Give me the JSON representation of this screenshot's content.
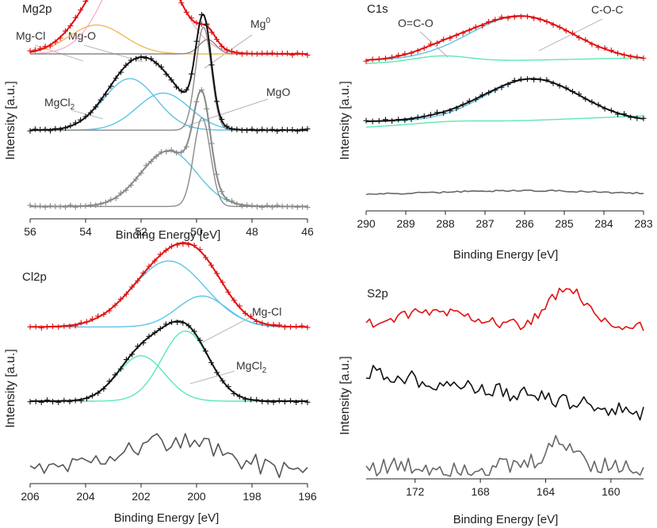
{
  "figure_title": "",
  "chart_data": [
    {
      "id": "mg2p",
      "type": "line",
      "title": "Mg2p",
      "xlabel": "Binding Energy [eV]",
      "ylabel": "Intensity [a.u.]",
      "xlim": [
        56,
        46
      ],
      "ylim": [
        0,
        1
      ],
      "x_ticks": [
        56,
        54,
        52,
        50,
        48,
        46
      ],
      "x_tick_labels": [
        "56",
        "54",
        "52",
        "50",
        "48",
        "46"
      ],
      "annotations": [
        {
          "id": "mg-cl",
          "text": "Mg-Cl",
          "sub": "",
          "sup": ""
        },
        {
          "id": "mg-o",
          "text": "Mg-O",
          "sub": "",
          "sup": ""
        },
        {
          "id": "mg0",
          "text": "Mg",
          "sub": "",
          "sup": "0"
        },
        {
          "id": "mgcl2",
          "text": "MgCl",
          "sub": "2",
          "sup": ""
        },
        {
          "id": "mgo",
          "text": "MgO",
          "sub": "",
          "sup": ""
        }
      ],
      "traces": [
        {
          "name": "top-mgcl-component",
          "color": "#f5b2cf",
          "kind": "line",
          "offset": 0.8,
          "x_range": [
            56,
            46
          ],
          "n": 200,
          "peaks": [
            {
              "c": 52.0,
              "a": 0.55,
              "w": 1.15
            }
          ]
        },
        {
          "name": "top-mgo-component",
          "color": "#f0b959",
          "kind": "line",
          "offset": 0.8,
          "x_range": [
            56,
            46
          ],
          "n": 200,
          "peaks": [
            {
              "c": 53.6,
              "a": 0.14,
              "w": 1.0
            }
          ]
        },
        {
          "name": "top-mg0-component",
          "color": "#8a8a8a",
          "kind": "line",
          "offset": 0.8,
          "x_range": [
            56,
            46
          ],
          "n": 200,
          "peaks": [
            {
              "c": 49.6,
              "a": 0.07,
              "w": 0.3
            }
          ]
        },
        {
          "name": "top-envelope",
          "color": "#e01010",
          "kind": "line",
          "offset": 0.8,
          "x_range": [
            56,
            46
          ],
          "n": 200,
          "peaks": [
            {
              "c": 52.0,
              "a": 0.55,
              "w": 1.15
            },
            {
              "c": 53.6,
              "a": 0.14,
              "w": 1.0
            },
            {
              "c": 49.6,
              "a": 0.07,
              "w": 0.3
            }
          ]
        },
        {
          "name": "top-data",
          "color": "#e01010",
          "kind": "markers",
          "offset": 0.8,
          "x_range": [
            56,
            46
          ],
          "n": 56,
          "peaks": [
            {
              "c": 52.0,
              "a": 0.55,
              "w": 1.15
            },
            {
              "c": 53.6,
              "a": 0.14,
              "w": 1.0
            },
            {
              "c": 49.6,
              "a": 0.07,
              "w": 0.3
            }
          ]
        },
        {
          "name": "mid-mgcl2-component",
          "color": "#5ec4e6",
          "kind": "line",
          "offset": 0.43,
          "x_range": [
            56,
            46
          ],
          "n": 200,
          "peaks": [
            {
              "c": 52.4,
              "a": 0.25,
              "w": 0.95
            }
          ]
        },
        {
          "name": "mid-mgo-component",
          "color": "#5ec4e6",
          "kind": "line",
          "offset": 0.43,
          "x_range": [
            56,
            46
          ],
          "n": 200,
          "peaks": [
            {
              "c": 51.2,
              "a": 0.18,
              "w": 0.95
            }
          ]
        },
        {
          "name": "mid-mg0-component",
          "color": "#8a8a8a",
          "kind": "line",
          "offset": 0.43,
          "x_range": [
            56,
            46
          ],
          "n": 200,
          "peaks": [
            {
              "c": 49.75,
              "a": 0.5,
              "w": 0.28
            }
          ]
        },
        {
          "name": "mid-envelope",
          "color": "#111111",
          "kind": "line",
          "offset": 0.43,
          "x_range": [
            56,
            46
          ],
          "n": 200,
          "peaks": [
            {
              "c": 52.4,
              "a": 0.25,
              "w": 0.95
            },
            {
              "c": 51.2,
              "a": 0.18,
              "w": 0.95
            },
            {
              "c": 49.75,
              "a": 0.5,
              "w": 0.28
            }
          ]
        },
        {
          "name": "mid-data",
          "color": "#111111",
          "kind": "markers",
          "offset": 0.43,
          "x_range": [
            56,
            46
          ],
          "n": 56,
          "peaks": [
            {
              "c": 52.4,
              "a": 0.25,
              "w": 0.95
            },
            {
              "c": 51.2,
              "a": 0.18,
              "w": 0.95
            },
            {
              "c": 49.75,
              "a": 0.5,
              "w": 0.28
            }
          ]
        },
        {
          "name": "bot-mgcl2-component",
          "color": "#5ec4e6",
          "kind": "line",
          "offset": 0.06,
          "x_range": [
            56,
            46
          ],
          "n": 200,
          "peaks": [
            {
              "c": 51.0,
              "a": 0.27,
              "w": 1.0
            }
          ]
        },
        {
          "name": "bot-mg0-component",
          "color": "#8a8a8a",
          "kind": "line",
          "offset": 0.06,
          "x_range": [
            56,
            46
          ],
          "n": 200,
          "peaks": [
            {
              "c": 49.8,
              "a": 0.43,
              "w": 0.3
            }
          ]
        },
        {
          "name": "bot-envelope",
          "color": "#888888",
          "kind": "line",
          "offset": 0.06,
          "x_range": [
            56,
            46
          ],
          "n": 200,
          "peaks": [
            {
              "c": 51.0,
              "a": 0.27,
              "w": 1.0
            },
            {
              "c": 49.8,
              "a": 0.43,
              "w": 0.3
            }
          ]
        },
        {
          "name": "bot-data",
          "color": "#888888",
          "kind": "markers",
          "offset": 0.06,
          "x_range": [
            56,
            46
          ],
          "n": 56,
          "peaks": [
            {
              "c": 51.0,
              "a": 0.27,
              "w": 1.0
            },
            {
              "c": 49.8,
              "a": 0.43,
              "w": 0.3
            }
          ]
        }
      ]
    },
    {
      "id": "c1s",
      "type": "line",
      "title": "C1s",
      "xlabel": "Binding Energy [eV]",
      "ylabel": "Intensity [a.u.]",
      "xlim": [
        290,
        283
      ],
      "ylim": [
        0,
        1
      ],
      "x_ticks": [
        290,
        289,
        288,
        287,
        286,
        285,
        284,
        283
      ],
      "x_tick_labels": [
        "290",
        "289",
        "288",
        "287",
        "286",
        "285",
        "284",
        "283"
      ],
      "annotations": [
        {
          "id": "ococ",
          "text": "O=C-O",
          "sub": "",
          "sup": ""
        },
        {
          "id": "coc",
          "text": "C-O-C",
          "sub": "",
          "sup": ""
        }
      ],
      "traces": [
        {
          "name": "top-coc-component",
          "color": "#5ec4e6",
          "kind": "line",
          "offset": 0.74,
          "x_range": [
            290,
            283
          ],
          "n": 160,
          "peaks": [
            {
              "c": 286.1,
              "a": 0.22,
              "w": 1.3
            }
          ]
        },
        {
          "name": "top-oco-component",
          "color": "#5ee8b0",
          "kind": "line",
          "offset": 0.74,
          "x_range": [
            290,
            283
          ],
          "n": 160,
          "peaks": [
            {
              "c": 288.1,
              "a": 0.03,
              "w": 0.7
            }
          ],
          "slope": -0.004
        },
        {
          "name": "top-envelope",
          "color": "#e01010",
          "kind": "line",
          "offset": 0.74,
          "x_range": [
            290,
            283
          ],
          "n": 160,
          "peaks": [
            {
              "c": 286.1,
              "a": 0.22,
              "w": 1.3
            },
            {
              "c": 288.1,
              "a": 0.03,
              "w": 0.7
            }
          ]
        },
        {
          "name": "top-data",
          "color": "#e01010",
          "kind": "markers",
          "offset": 0.74,
          "x_range": [
            290,
            283
          ],
          "n": 44,
          "peaks": [
            {
              "c": 286.1,
              "a": 0.22,
              "w": 1.3
            },
            {
              "c": 288.1,
              "a": 0.03,
              "w": 0.7
            }
          ]
        },
        {
          "name": "mid-coc-component",
          "color": "#5ec4e6",
          "kind": "line",
          "offset": 0.44,
          "x_range": [
            290,
            283
          ],
          "n": 160,
          "peaks": [
            {
              "c": 285.8,
              "a": 0.21,
              "w": 1.2
            }
          ]
        },
        {
          "name": "mid-bg-component",
          "color": "#5ee8b0",
          "kind": "line",
          "offset": 0.44,
          "x_range": [
            290,
            283
          ],
          "n": 160,
          "peaks": [
            {
              "c": 287.9,
              "a": 0.012,
              "w": 0.9
            }
          ],
          "slope": -0.008
        },
        {
          "name": "mid-envelope",
          "color": "#111111",
          "kind": "line",
          "offset": 0.44,
          "x_range": [
            290,
            283
          ],
          "n": 160,
          "peaks": [
            {
              "c": 285.8,
              "a": 0.21,
              "w": 1.2
            },
            {
              "c": 287.9,
              "a": 0.012,
              "w": 0.9
            }
          ]
        },
        {
          "name": "mid-data",
          "color": "#111111",
          "kind": "markers",
          "offset": 0.44,
          "x_range": [
            290,
            283
          ],
          "n": 44,
          "peaks": [
            {
              "c": 285.8,
              "a": 0.21,
              "w": 1.2
            },
            {
              "c": 287.9,
              "a": 0.012,
              "w": 0.9
            }
          ]
        },
        {
          "name": "bot-trace",
          "color": "#666666",
          "kind": "noisy",
          "offset": 0.08,
          "x_range": [
            290,
            283
          ],
          "n": 80,
          "peaks": [
            {
              "c": 286.0,
              "a": 0.02,
              "w": 2.0
            }
          ],
          "noise": 0.004
        }
      ]
    },
    {
      "id": "cl2p",
      "type": "line",
      "title": "Cl2p",
      "xlabel": "Binding Energy [eV]",
      "ylabel": "Intensity [a.u.]",
      "xlim": [
        206,
        196
      ],
      "ylim": [
        0,
        1
      ],
      "x_ticks": [
        206,
        204,
        202,
        200,
        198,
        196
      ],
      "x_tick_labels": [
        "206",
        "204",
        "202",
        "200",
        "198",
        "196"
      ],
      "annotations": [
        {
          "id": "mgcl-cl",
          "text": "Mg-Cl",
          "sub": "",
          "sup": ""
        },
        {
          "id": "mgcl2-cl",
          "text": "MgCl",
          "sub": "2",
          "sup": ""
        }
      ],
      "traces": [
        {
          "name": "top-1-component",
          "color": "#5ec4e6",
          "kind": "line",
          "offset": 0.76,
          "x_range": [
            206,
            196
          ],
          "n": 180,
          "peaks": [
            {
              "c": 201.0,
              "a": 0.32,
              "w": 1.3
            }
          ]
        },
        {
          "name": "top-2-component",
          "color": "#5ec4e6",
          "kind": "line",
          "offset": 0.76,
          "x_range": [
            206,
            196
          ],
          "n": 180,
          "peaks": [
            {
              "c": 199.8,
              "a": 0.15,
              "w": 0.9
            }
          ]
        },
        {
          "name": "top-envelope",
          "color": "#e01010",
          "kind": "line",
          "offset": 0.76,
          "x_range": [
            206,
            196
          ],
          "n": 180,
          "peaks": [
            {
              "c": 201.0,
              "a": 0.32,
              "w": 1.3
            },
            {
              "c": 199.8,
              "a": 0.15,
              "w": 0.9
            }
          ]
        },
        {
          "name": "top-data",
          "color": "#e01010",
          "kind": "markers",
          "offset": 0.76,
          "x_range": [
            206,
            196
          ],
          "n": 50,
          "peaks": [
            {
              "c": 201.0,
              "a": 0.32,
              "w": 1.3
            },
            {
              "c": 199.8,
              "a": 0.15,
              "w": 0.9
            }
          ]
        },
        {
          "name": "mid-1-component",
          "color": "#5ee8b0",
          "kind": "line",
          "offset": 0.4,
          "x_range": [
            206,
            196
          ],
          "n": 180,
          "peaks": [
            {
              "c": 202.0,
              "a": 0.22,
              "w": 0.85
            }
          ]
        },
        {
          "name": "mid-2-component",
          "color": "#5ee8b0",
          "kind": "line",
          "offset": 0.4,
          "x_range": [
            206,
            196
          ],
          "n": 180,
          "peaks": [
            {
              "c": 200.4,
              "a": 0.34,
              "w": 0.85
            }
          ]
        },
        {
          "name": "mid-envelope",
          "color": "#111111",
          "kind": "line",
          "offset": 0.4,
          "x_range": [
            206,
            196
          ],
          "n": 180,
          "peaks": [
            {
              "c": 202.0,
              "a": 0.22,
              "w": 0.85
            },
            {
              "c": 200.4,
              "a": 0.34,
              "w": 0.85
            }
          ]
        },
        {
          "name": "mid-data",
          "color": "#111111",
          "kind": "markers",
          "offset": 0.4,
          "x_range": [
            206,
            196
          ],
          "n": 50,
          "peaks": [
            {
              "c": 202.0,
              "a": 0.22,
              "w": 0.85
            },
            {
              "c": 200.4,
              "a": 0.34,
              "w": 0.85
            }
          ]
        },
        {
          "name": "bot-trace",
          "color": "#555555",
          "kind": "noisy",
          "offset": 0.06,
          "x_range": [
            206,
            196
          ],
          "n": 60,
          "peaks": [
            {
              "c": 201.0,
              "a": 0.14,
              "w": 2.0
            }
          ],
          "noise": 0.05
        }
      ]
    },
    {
      "id": "s2p",
      "type": "line",
      "title": "S2p",
      "xlabel": "Binding Energy [eV]",
      "ylabel": "Intensity [a.u.]",
      "xlim": [
        175,
        158
      ],
      "ylim": [
        0,
        1
      ],
      "x_ticks": [
        172,
        168,
        164,
        160
      ],
      "x_tick_labels": [
        "172",
        "168",
        "164",
        "160"
      ],
      "annotations": [],
      "traces": [
        {
          "name": "top-trace",
          "color": "#e01010",
          "kind": "noisy",
          "offset": 0.75,
          "x_range": [
            175,
            158
          ],
          "n": 80,
          "peaks": [
            {
              "c": 170.5,
              "a": 0.08,
              "w": 2.5
            },
            {
              "c": 162.7,
              "a": 0.19,
              "w": 1.1
            }
          ],
          "noise": 0.03
        },
        {
          "name": "mid-trace",
          "color": "#111111",
          "kind": "noisy",
          "offset": 0.43,
          "x_range": [
            175,
            158
          ],
          "n": 80,
          "peaks": [
            {
              "c": 159.0,
              "a": 0.0,
              "w": 1.0
            }
          ],
          "noise": 0.04,
          "slope": 0.012
        },
        {
          "name": "bot-trace",
          "color": "#666666",
          "kind": "noisy",
          "offset": 0.06,
          "x_range": [
            175,
            158
          ],
          "n": 80,
          "peaks": [
            {
              "c": 163.0,
              "a": 0.12,
              "w": 1.0
            }
          ],
          "noise": 0.05
        }
      ]
    }
  ]
}
